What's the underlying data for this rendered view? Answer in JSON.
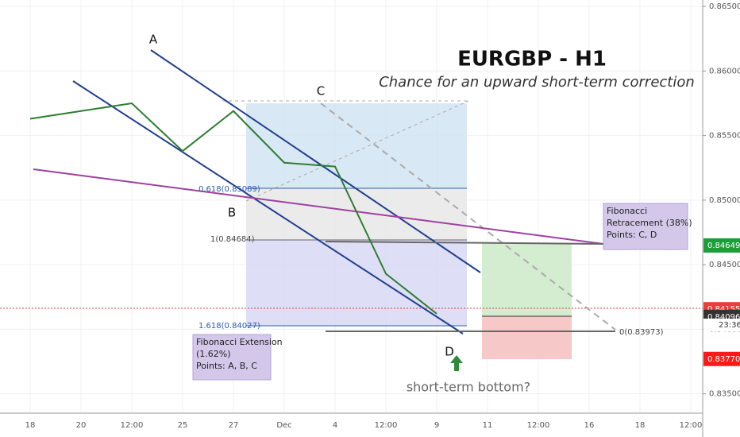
{
  "chart_data": {
    "type": "line",
    "title": "EURGBP - H1",
    "subtitle": "Chance for an upward short-term correction",
    "categories": [
      "18",
      "20",
      "12:00",
      "25",
      "27",
      "Dec",
      "4",
      "12:00",
      "9",
      "11",
      "12:00",
      "16",
      "18",
      "12:00"
    ],
    "series": [
      {
        "name": "EURGBP",
        "color": "#2e7d32",
        "values": [
          0.8563,
          0.8569,
          0.8575,
          0.8538,
          0.8569,
          0.8529,
          0.8526,
          0.8443,
          0.8412,
          null,
          null,
          null,
          null,
          null
        ]
      }
    ],
    "ylim": [
      0.8335,
      0.8655
    ],
    "yticks": [
      {
        "value": 0.835,
        "label": "0.83500"
      },
      {
        "value": 0.84,
        "label": "0.84000"
      },
      {
        "value": 0.845,
        "label": "0.84500"
      },
      {
        "value": 0.85,
        "label": "0.85000"
      },
      {
        "value": 0.855,
        "label": "0.85500"
      },
      {
        "value": 0.86,
        "label": "0.86000"
      },
      {
        "value": 0.865,
        "label": "0.86500"
      }
    ],
    "grid": true,
    "price_labels": [
      {
        "value": 0.84649,
        "label": "0.84649",
        "color": "#1b9e3a"
      },
      {
        "value": 0.84155,
        "label": "0.84155",
        "color": "#ef3b3b"
      },
      {
        "value": 0.84096,
        "label": "0.84096",
        "color": "#333333"
      },
      {
        "value": 0.8377,
        "label": "0.83770",
        "color": "#ff1a1a"
      }
    ],
    "countdown": "23:36",
    "points": [
      "A",
      "B",
      "C",
      "D"
    ],
    "fib_levels": [
      "0.618(0.85089)",
      "1(0.84684)",
      "1.618(0.84027)",
      "0(0.83973)"
    ],
    "boxes": [
      {
        "lines": [
          "Fibonacci Extension",
          "(1.62%)",
          "Points: A, B, C"
        ]
      },
      {
        "lines": [
          "Fibonacci",
          "Retracement (38%)",
          "Points: C, D"
        ]
      }
    ],
    "question": "short-term bottom?"
  }
}
